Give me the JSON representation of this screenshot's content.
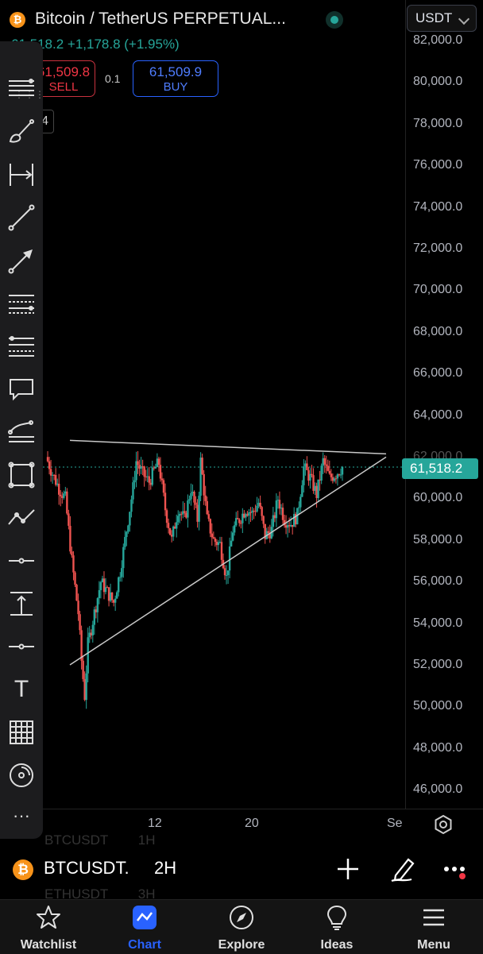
{
  "header": {
    "title": "Bitcoin / TetherUS PERPETUAL...",
    "currency": "USDT",
    "price_line": "61,518.2  +1,178.8 (+1.95%)",
    "sell_price": "61,509.8",
    "sell_label": "SELL",
    "spread": "0.1",
    "buy_price": "61,509.9",
    "buy_label": "BUY",
    "interval_glyph": "4",
    "btc_symbol": "₿"
  },
  "toolbar": {
    "tools": [
      "menu-lines-icon",
      "brush-icon",
      "date-range-icon",
      "trend-line-icon",
      "arrow-icon",
      "pitchfork-icon",
      "fib-retracement-icon",
      "callout-icon",
      "path-icon",
      "rectangle-icon",
      "polyline-icon",
      "horizontal-ray-icon",
      "price-range-icon",
      "horizontal-line-icon",
      "text-icon",
      "grid-icon",
      "magnet-icon",
      "more-icon"
    ],
    "text_tool_glyph": "T",
    "more_glyph": "···"
  },
  "price_axis": {
    "ticks": [
      "82,000.0",
      "80,000.0",
      "78,000.0",
      "76,000.0",
      "74,000.0",
      "72,000.0",
      "70,000.0",
      "68,000.0",
      "66,000.0",
      "64,000.0",
      "62,000.0",
      "60,000.0",
      "58,000.0",
      "56,000.0",
      "54,000.0",
      "52,000.0",
      "50,000.0",
      "48,000.0",
      "46,000.0"
    ],
    "current_price": "61,518.2"
  },
  "time_axis": {
    "ticks": [
      "12",
      "20",
      "Se"
    ]
  },
  "chart_data": {
    "type": "candlestick",
    "symbol": "BTCUSDT",
    "timeframe": "2H",
    "ylim": [
      45000,
      82500
    ],
    "current_price": 61518.2,
    "x_ticks": [
      "12",
      "20",
      "Se"
    ],
    "approx_path": [
      [
        0,
        62000
      ],
      [
        2,
        61200
      ],
      [
        4,
        60500
      ],
      [
        6,
        60000
      ],
      [
        8,
        57000
      ],
      [
        10,
        54500
      ],
      [
        11,
        52200
      ],
      [
        12,
        50500
      ],
      [
        13,
        53000
      ],
      [
        15,
        54500
      ],
      [
        17,
        56000
      ],
      [
        19,
        55500
      ],
      [
        21,
        55000
      ],
      [
        23,
        56500
      ],
      [
        25,
        58500
      ],
      [
        27,
        60500
      ],
      [
        28,
        61800
      ],
      [
        30,
        61200
      ],
      [
        32,
        60800
      ],
      [
        34,
        61500
      ],
      [
        35,
        61700
      ],
      [
        37,
        59500
      ],
      [
        39,
        58000
      ],
      [
        41,
        59500
      ],
      [
        43,
        59000
      ],
      [
        45,
        60500
      ],
      [
        47,
        59000
      ],
      [
        48,
        61800
      ],
      [
        50,
        59000
      ],
      [
        52,
        58000
      ],
      [
        54,
        57800
      ],
      [
        56,
        56200
      ],
      [
        58,
        58500
      ],
      [
        60,
        59000
      ],
      [
        62,
        59500
      ],
      [
        64,
        59300
      ],
      [
        66,
        59800
      ],
      [
        68,
        58200
      ],
      [
        70,
        58500
      ],
      [
        72,
        60000
      ],
      [
        74,
        59000
      ],
      [
        76,
        58800
      ],
      [
        78,
        59200
      ],
      [
        80,
        61500
      ],
      [
        82,
        61000
      ],
      [
        84,
        60200
      ],
      [
        86,
        61800
      ],
      [
        88,
        61000
      ],
      [
        90,
        61200
      ],
      [
        92,
        61518
      ]
    ],
    "annotations": [
      {
        "type": "trend-line",
        "from": [
          0,
          62800
        ],
        "to": [
          110,
          62150
        ]
      },
      {
        "type": "trend-line",
        "from": [
          0,
          52000
        ],
        "to": [
          110,
          62000
        ]
      }
    ]
  },
  "symbol_bar": {
    "symbol": "BTCUSDT.",
    "timeframe": "2H",
    "ghost_above": "BTCUSDT        1H",
    "ghost_below": "ETHUSDT        3H",
    "add_glyph": "+"
  },
  "tabs": [
    {
      "label": "Watchlist",
      "icon": "star-icon"
    },
    {
      "label": "Chart",
      "icon": "chart-icon",
      "active": true
    },
    {
      "label": "Explore",
      "icon": "compass-icon"
    },
    {
      "label": "Ideas",
      "icon": "lightbulb-icon"
    },
    {
      "label": "Menu",
      "icon": "hamburger-icon"
    }
  ],
  "colors": {
    "up": "#26a69a",
    "down": "#ef5350",
    "accent": "#2962ff",
    "sell": "#f23645",
    "price_tag": "#26a69a"
  }
}
